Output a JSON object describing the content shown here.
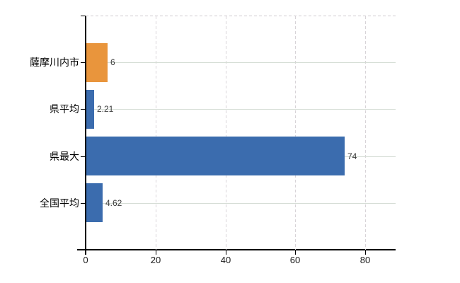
{
  "chart": {
    "title": "",
    "background": "#ffffff"
  },
  "chart_data": {
    "type": "bar",
    "orientation": "horizontal",
    "categories": [
      "薩摩川内市",
      "県平均",
      "県最大",
      "全国平均"
    ],
    "series": [
      {
        "name": "value",
        "values": [
          6,
          2.21,
          74,
          4.62
        ]
      }
    ],
    "value_labels": [
      "6",
      "2.21",
      "74",
      "4.62"
    ],
    "bar_colors": [
      "#e9953c",
      "#3b6cae",
      "#3b6cae",
      "#3b6cae"
    ],
    "x_tick_values": [
      0,
      20,
      40,
      60,
      80
    ],
    "x_tick_labels": [
      "0",
      "20",
      "40",
      "60",
      "80"
    ],
    "xlim": [
      0,
      88.7
    ],
    "ylabel": "",
    "xlabel": "",
    "legend": "none",
    "grid": {
      "vertical": "dashed",
      "horizontal": "solid-at-category-centers"
    }
  },
  "colors": {
    "bar_orange": "#e9953c",
    "bar_blue": "#3b6cae",
    "axis": "#000000",
    "grid_horizontal": "#d5ddd5",
    "grid_vertical": "#d8d4d8",
    "category_label": "#000000",
    "tick_label": "#1a1a1a",
    "value_label": "#3a3a3a"
  }
}
